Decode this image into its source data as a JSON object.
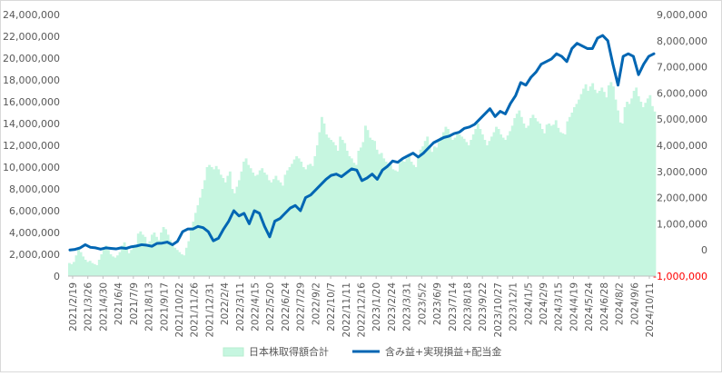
{
  "chart_data": {
    "type": "bar+line",
    "title": "",
    "y_left": {
      "min": 0,
      "max": 24000000,
      "ticks": [
        "0",
        "2,000,000",
        "4,000,000",
        "6,000,000",
        "8,000,000",
        "10,000,000",
        "12,000,000",
        "14,000,000",
        "16,000,000",
        "18,000,000",
        "20,000,000",
        "22,000,000",
        "24,000,000"
      ]
    },
    "y_right": {
      "min": -1000000,
      "max": 9000000,
      "ticks": [
        "-1,000,000",
        "0",
        "1,000,000",
        "2,000,000",
        "3,000,000",
        "4,000,000",
        "5,000,000",
        "6,000,000",
        "7,000,000",
        "8,000,000",
        "9,000,000"
      ],
      "negative_color": "#ff0000"
    },
    "x_ticks": [
      "2021/2/19",
      "2021/3/26",
      "2021/4/30",
      "2021/6/4",
      "2021/7/9",
      "2021/8/13",
      "2021/9/17",
      "2021/10/22",
      "2021/11/26",
      "2021/12/31",
      "2022/2/4",
      "2022/3/11",
      "2022/4/15",
      "2022/5/20",
      "2022/6/24",
      "2022/7/29",
      "2022/9/2",
      "2022/10/7",
      "2022/11/11",
      "2022/12/16",
      "2023/1/20",
      "2023/2/24",
      "2023/3/31",
      "2023/5/2",
      "2023/6/9",
      "2023/7/14",
      "2023/8/18",
      "2023/9/22",
      "2023/10/27",
      "2023/12/1",
      "2024/1/5",
      "2024/2/9",
      "2024/3/15",
      "2024/4/19",
      "2024/5/24",
      "2024/6/28",
      "2024/8/2",
      "2024/9/6",
      "2024/10/11"
    ],
    "series": [
      {
        "name": "日本株取得額合計",
        "type": "bar",
        "axis": "left",
        "color": "#c6f6e0",
        "values": [
          1200000,
          1100000,
          1300000,
          1900000,
          2500000,
          2200000,
          1800000,
          1500000,
          1300000,
          1400000,
          1200000,
          1100000,
          1000000,
          1500000,
          2000000,
          2500000,
          2800000,
          2400000,
          2000000,
          1800000,
          1700000,
          1900000,
          2200000,
          2800000,
          3100000,
          2500000,
          2100000,
          2400000,
          2700000,
          2900000,
          3900000,
          4100000,
          3800000,
          3600000,
          2900000,
          3200000,
          3800000,
          4000000,
          3600000,
          3300000,
          4000000,
          4500000,
          4300000,
          3800000,
          3300000,
          2800000,
          2600000,
          2400000,
          2200000,
          2000000,
          1900000,
          2600000,
          3200000,
          4200000,
          5000000,
          5800000,
          6500000,
          7200000,
          8000000,
          8800000,
          10000000,
          10200000,
          10000000,
          9800000,
          10100000,
          9800000,
          9300000,
          9000000,
          8600000,
          9200000,
          9600000,
          8000000,
          7600000,
          8200000,
          8800000,
          9600000,
          10500000,
          10800000,
          10200000,
          9900000,
          9500000,
          9200000,
          9300000,
          9700000,
          9900000,
          9500000,
          9300000,
          8800000,
          8600000,
          8900000,
          9200000,
          8800000,
          8600000,
          8300000,
          9300000,
          9700000,
          10000000,
          10300000,
          10700000,
          11000000,
          10800000,
          10500000,
          10000000,
          9800000,
          10200000,
          10300000,
          10100000,
          11000000,
          12000000,
          13200000,
          14600000,
          14000000,
          13000000,
          12700000,
          12500000,
          12300000,
          12000000,
          11500000,
          12800000,
          12500000,
          12200000,
          11500000,
          11000000,
          10800000,
          10400000,
          10200000,
          11500000,
          11800000,
          12300000,
          13800000,
          13400000,
          12700000,
          12500000,
          12400000,
          11600000,
          11200000,
          11300000,
          10800000,
          10500000,
          10000000,
          10200000,
          9800000,
          9700000,
          9600000,
          10400000,
          10600000,
          10500000,
          10800000,
          11200000,
          10500000,
          10200000,
          10000000,
          11000000,
          11600000,
          11900000,
          12400000,
          12800000,
          12000000,
          11400000,
          11900000,
          11800000,
          12300000,
          12800000,
          13200000,
          13700000,
          13500000,
          13000000,
          12500000,
          12700000,
          13200000,
          13000000,
          12800000,
          12600000,
          12300000,
          12000000,
          12500000,
          13000000,
          13500000,
          14000000,
          13500000,
          13000000,
          12500000,
          12000000,
          12400000,
          12800000,
          13200000,
          13700000,
          13500000,
          13000000,
          12700000,
          12500000,
          12900000,
          13300000,
          13800000,
          14500000,
          14900000,
          15200000,
          14600000,
          14000000,
          13600000,
          13800000,
          14500000,
          14800000,
          14500000,
          14200000,
          14000000,
          13500000,
          13100000,
          13900000,
          14000000,
          13800000,
          13900000,
          14300000,
          13600000,
          13200000,
          13100000,
          13000000,
          14200000,
          14600000,
          15000000,
          15500000,
          15800000,
          16200000,
          16700000,
          17200000,
          17600000,
          17000000,
          17400000,
          17700000,
          17100000,
          16800000,
          17000000,
          17300000,
          16900000,
          16400000,
          17500000,
          17800000,
          17400000,
          16200000,
          15200000,
          14100000,
          14000000,
          15500000,
          16000000,
          15800000,
          16300000,
          17000000,
          17300000,
          16500000,
          16000000,
          15500000,
          15900000,
          16300000,
          16600000,
          15600000,
          15100000
        ]
      },
      {
        "name": "含み益+実現損益+配当金",
        "type": "line",
        "axis": "right",
        "color": "#0066b3",
        "values": [
          0,
          20000,
          80000,
          200000,
          100000,
          80000,
          30000,
          80000,
          60000,
          40000,
          80000,
          60000,
          120000,
          150000,
          200000,
          180000,
          140000,
          250000,
          260000,
          300000,
          200000,
          330000,
          700000,
          800000,
          800000,
          900000,
          850000,
          700000,
          350000,
          450000,
          800000,
          1100000,
          1500000,
          1300000,
          1400000,
          1000000,
          1500000,
          1400000,
          900000,
          500000,
          1100000,
          1200000,
          1400000,
          1600000,
          1700000,
          1500000,
          2000000,
          2100000,
          2300000,
          2500000,
          2700000,
          2850000,
          2900000,
          2800000,
          2950000,
          3100000,
          3050000,
          2650000,
          2750000,
          2900000,
          2700000,
          3050000,
          3200000,
          3400000,
          3350000,
          3500000,
          3600000,
          3700000,
          3550000,
          3700000,
          3900000,
          4100000,
          4200000,
          4300000,
          4350000,
          4450000,
          4500000,
          4650000,
          4700000,
          4800000,
          5000000,
          5200000,
          5400000,
          5100000,
          5300000,
          5200000,
          5600000,
          5900000,
          6400000,
          6300000,
          6600000,
          6800000,
          7100000,
          7200000,
          7300000,
          7500000,
          7400000,
          7200000,
          7700000,
          7900000,
          7800000,
          7700000,
          7700000,
          8100000,
          8200000,
          8000000,
          7100000,
          6300000,
          7400000,
          7500000,
          7400000,
          6700000,
          7100000,
          7400000,
          7500000
        ]
      }
    ],
    "legend": {
      "position": "bottom"
    },
    "grid": false
  }
}
